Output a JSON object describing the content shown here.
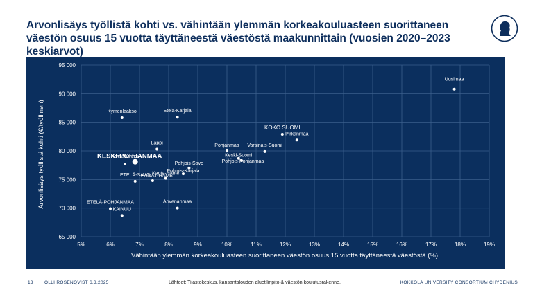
{
  "header": {
    "title": "Arvonlisäys työllistä kohti vs. vähintään ylemmän korkeakouluasteen suorittaneen väestön osuus 15 vuotta täyttäneestä väestöstä maakunnittain (vuosien 2020–2023 keskiarvot)"
  },
  "footer": {
    "page_number": "13",
    "author_date": "OLLI ROSENQVIST 6.3.2025",
    "source": "Lähteet: Tilastokeskus, kansantalouden aluetilinpito & väestön koulutusrakenne.",
    "organization": "KOKKOLA UNIVERSITY CONSORTIUM CHYDENIUS"
  },
  "colors": {
    "panel_background": "#0b2f5e",
    "title": "#0d2e5c",
    "points": "#ffffff",
    "gridlines": "#3b5f8c"
  },
  "chart_data": {
    "type": "scatter",
    "title": "",
    "xlabel": "Vähintään ylemmän korkeakouluasteen suorittaneen väestön osuus 15 vuotta täyttäneestä väestöstä (%)",
    "ylabel": "Arvonlisäys työllistä kohti (€/työllinen)",
    "xlim": [
      5,
      19
    ],
    "ylim": [
      65000,
      95000
    ],
    "x_ticks": [
      5,
      6,
      7,
      8,
      9,
      10,
      11,
      12,
      13,
      14,
      15,
      16,
      17,
      18,
      19
    ],
    "x_tick_labels": [
      "5%",
      "6%",
      "7%",
      "8%",
      "9%",
      "10%",
      "11%",
      "12%",
      "13%",
      "14%",
      "15%",
      "16%",
      "17%",
      "18%",
      "19%"
    ],
    "y_ticks": [
      65000,
      70000,
      75000,
      80000,
      85000,
      90000,
      95000
    ],
    "y_tick_labels": [
      "65 000",
      "70 000",
      "75 000",
      "80 000",
      "85 000",
      "90 000",
      "95 000"
    ],
    "grid": true,
    "points": [
      {
        "label": "Uusimaa",
        "x": 17.8,
        "y": 90800
      },
      {
        "label": "Kymenlaakso",
        "x": 6.4,
        "y": 85800
      },
      {
        "label": "Etelä-Karjala",
        "x": 8.3,
        "y": 85900
      },
      {
        "label": "KOKO SUOMI",
        "x": 11.9,
        "y": 82900
      },
      {
        "label": "Pirkanmaa",
        "x": 12.4,
        "y": 81900
      },
      {
        "label": "Lappi",
        "x": 7.6,
        "y": 80300
      },
      {
        "label": "Pohjanmaa",
        "x": 10.0,
        "y": 80000
      },
      {
        "label": "Varsinais-Suomi",
        "x": 11.3,
        "y": 79900
      },
      {
        "label": "Keski-Suomi",
        "x": 10.4,
        "y": 78700
      },
      {
        "label": "Pohjois-Pohjanmaa",
        "x": 10.5,
        "y": 78300
      },
      {
        "label": "KESKI-POHJANMAA",
        "x": 6.85,
        "y": 78100
      },
      {
        "label": "SATAKUNTA",
        "x": 6.5,
        "y": 77700
      },
      {
        "label": "Pohjois-Savo",
        "x": 8.7,
        "y": 77000
      },
      {
        "label": "Pohjois-Karjala",
        "x": 8.5,
        "y": 76000
      },
      {
        "label": "Kanta-Häme",
        "x": 7.9,
        "y": 75200
      },
      {
        "label": "ETELÄ-SAVO",
        "x": 6.85,
        "y": 74700
      },
      {
        "label": "PÄIJÄT-HÄME",
        "x": 7.45,
        "y": 74800
      },
      {
        "label": "Ahvenanmaa",
        "x": 8.3,
        "y": 70000
      },
      {
        "label": "ETELÄ-POHJANMAA",
        "x": 6.0,
        "y": 69900
      },
      {
        "label": "KAINUU",
        "x": 6.4,
        "y": 68700
      }
    ]
  }
}
